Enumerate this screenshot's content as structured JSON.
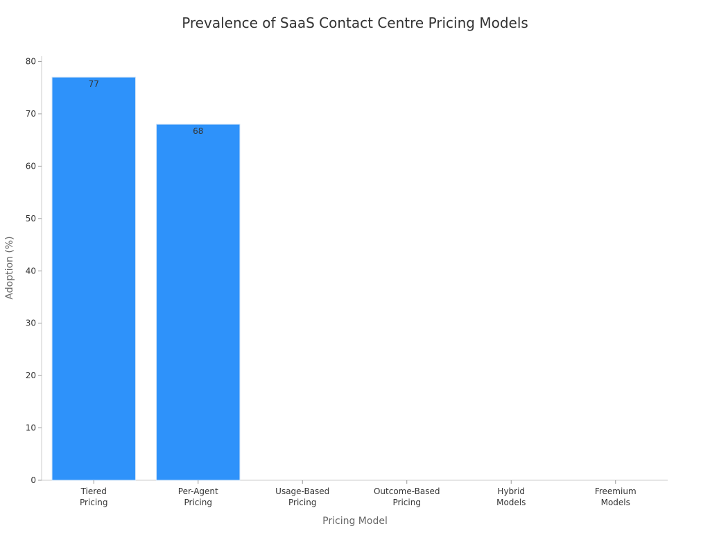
{
  "chart_data": {
    "type": "bar",
    "title": "Prevalence of SaaS Contact Centre Pricing Models",
    "xlabel": "Pricing Model",
    "ylabel": "Adoption (%)",
    "categories": [
      [
        "Tiered",
        "Pricing"
      ],
      [
        "Per-Agent",
        "Pricing"
      ],
      [
        "Usage-Based",
        "Pricing"
      ],
      [
        "Outcome-Based",
        "Pricing"
      ],
      [
        "Hybrid",
        "Models"
      ],
      [
        "Freemium",
        "Models"
      ]
    ],
    "values": [
      77,
      68,
      null,
      null,
      null,
      null
    ],
    "data_labels": [
      "77",
      "68",
      "",
      "",
      "",
      ""
    ],
    "yticks": [
      0,
      10,
      20,
      30,
      40,
      50,
      60,
      70,
      80
    ],
    "ylim": [
      0,
      81
    ],
    "grid": false,
    "bar_color": "#2e92fa",
    "bar_edge_color": "#cfe3f7"
  }
}
